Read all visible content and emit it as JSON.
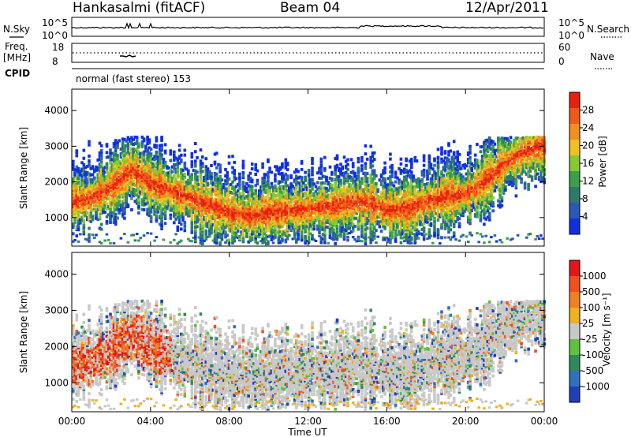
{
  "header": {
    "station": "Hankasalmi (fitACF)",
    "beam": "Beam 04",
    "date": "12/Apr/2011"
  },
  "top_panels": {
    "nsky_label": "N.Sky",
    "nsearch_label": "N.Search",
    "nsky_ticks": [
      "10^5",
      "10^0"
    ],
    "nsearch_ticks": [
      "10^5",
      "10^0"
    ],
    "freq_label_line1": "Freq.",
    "freq_label_line2": "[MHz]",
    "freq_ticks": [
      "18",
      "8"
    ],
    "nave_label": "Nave",
    "nave_ticks": [
      "60",
      "0"
    ],
    "cpid_label": "CPID",
    "cpid_text": "normal (fast stereo) 153"
  },
  "chart_data": [
    {
      "type": "heatmap",
      "name": "power",
      "ylabel": "Slant Range [km]",
      "yticks": [
        1000,
        2000,
        3000,
        4000
      ],
      "ylim": [
        200,
        4600
      ],
      "xticks": [
        "00:00",
        "04:00",
        "08:00",
        "12:00",
        "16:00",
        "20:00",
        "00:00"
      ],
      "xlim_hours": [
        0,
        24
      ],
      "colorbar": {
        "label": "Power [dB]",
        "ticks": [
          "4",
          "8",
          "12",
          "16",
          "20",
          "24",
          "28"
        ],
        "colors": [
          "#1030e0",
          "#2a58b8",
          "#2e7a6a",
          "#3aa04a",
          "#88c830",
          "#f0c020",
          "#f09020",
          "#f05a18",
          "#e82010"
        ]
      }
    },
    {
      "type": "heatmap",
      "name": "velocity",
      "ylabel": "Slant Range [km]",
      "yticks": [
        1000,
        2000,
        3000,
        4000
      ],
      "ylim": [
        200,
        4600
      ],
      "xticks": [
        "00:00",
        "04:00",
        "08:00",
        "12:00",
        "16:00",
        "20:00",
        "00:00"
      ],
      "xlabel": "Time UT",
      "colorbar": {
        "label": "Velocity [m s⁻¹]",
        "ticks": [
          "1000",
          "500",
          "100",
          "25",
          "-25",
          "-100",
          "-500",
          "-1000"
        ],
        "colors": [
          "#2040b8",
          "#3070c0",
          "#2e8a5a",
          "#60c040",
          "#c8c8c8",
          "#f0b020",
          "#f08020",
          "#f05020",
          "#e01818"
        ]
      }
    }
  ],
  "colors": {
    "axis": "#000000",
    "background": "#ffffff",
    "gray_scatter": "#c8c8c8"
  }
}
